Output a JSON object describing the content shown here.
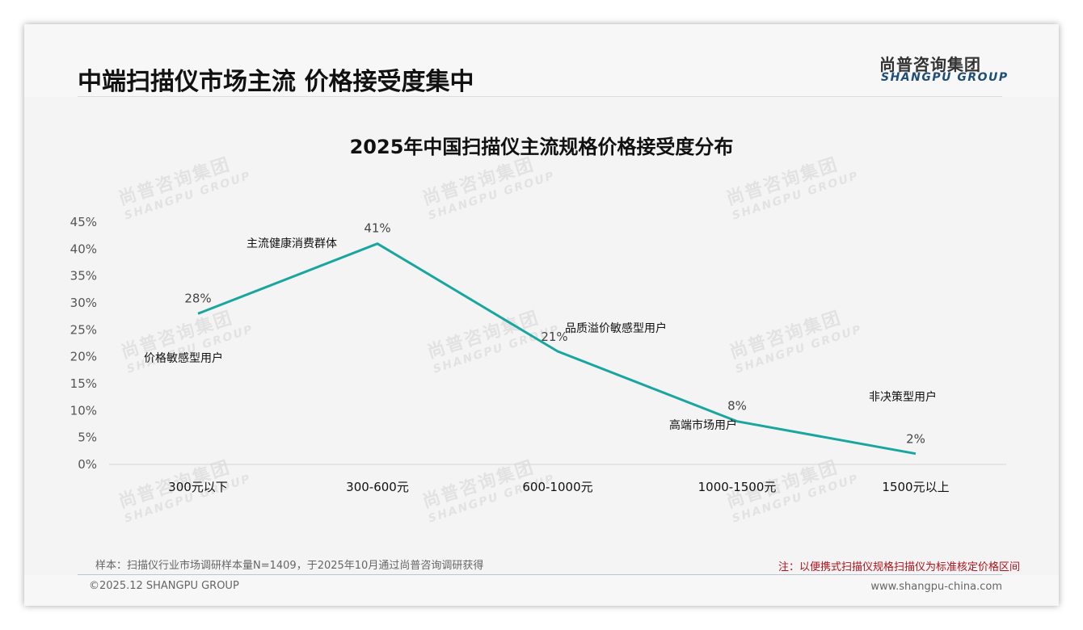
{
  "header": {
    "title": "中端扫描仪市场主流 价格接受度集中",
    "logo_cn": "尚普咨询集团",
    "logo_en": "SHANGPU GROUP"
  },
  "watermark": {
    "cn": "尚普咨询集团",
    "en": "SHANGPU GROUP"
  },
  "chart_data": {
    "type": "line",
    "title": "2025年中国扫描仪主流规格价格接受度分布",
    "xlabel": "",
    "ylabel": "",
    "categories": [
      "300元以下",
      "300-600元",
      "600-1000元",
      "1000-1500元",
      "1500元以上"
    ],
    "series": [
      {
        "name": "价格接受度",
        "values": [
          28,
          41,
          21,
          8,
          2
        ],
        "color": "#1aa6a0"
      }
    ],
    "data_labels": [
      "28%",
      "41%",
      "21%",
      "8%",
      "2%"
    ],
    "annotations": [
      "价格敏感型用户",
      "主流健康消费群体",
      "品质溢价敏感型用户",
      "高端市场用户",
      "非决策型用户"
    ],
    "yticks": [
      "0%",
      "5%",
      "10%",
      "15%",
      "20%",
      "25%",
      "30%",
      "35%",
      "40%",
      "45%"
    ],
    "ylim": [
      0,
      45
    ],
    "grid": false,
    "legend": "none"
  },
  "footer": {
    "sample": "样本：扫描仪行业市场调研样本量N=1409，于2025年10月通过尚普咨询调研获得",
    "note": "注：以便携式扫描仪规格扫描仪为标准核定价格区间",
    "copyright": "©2025.12 SHANGPU GROUP",
    "url": "www.shangpu-china.com"
  }
}
